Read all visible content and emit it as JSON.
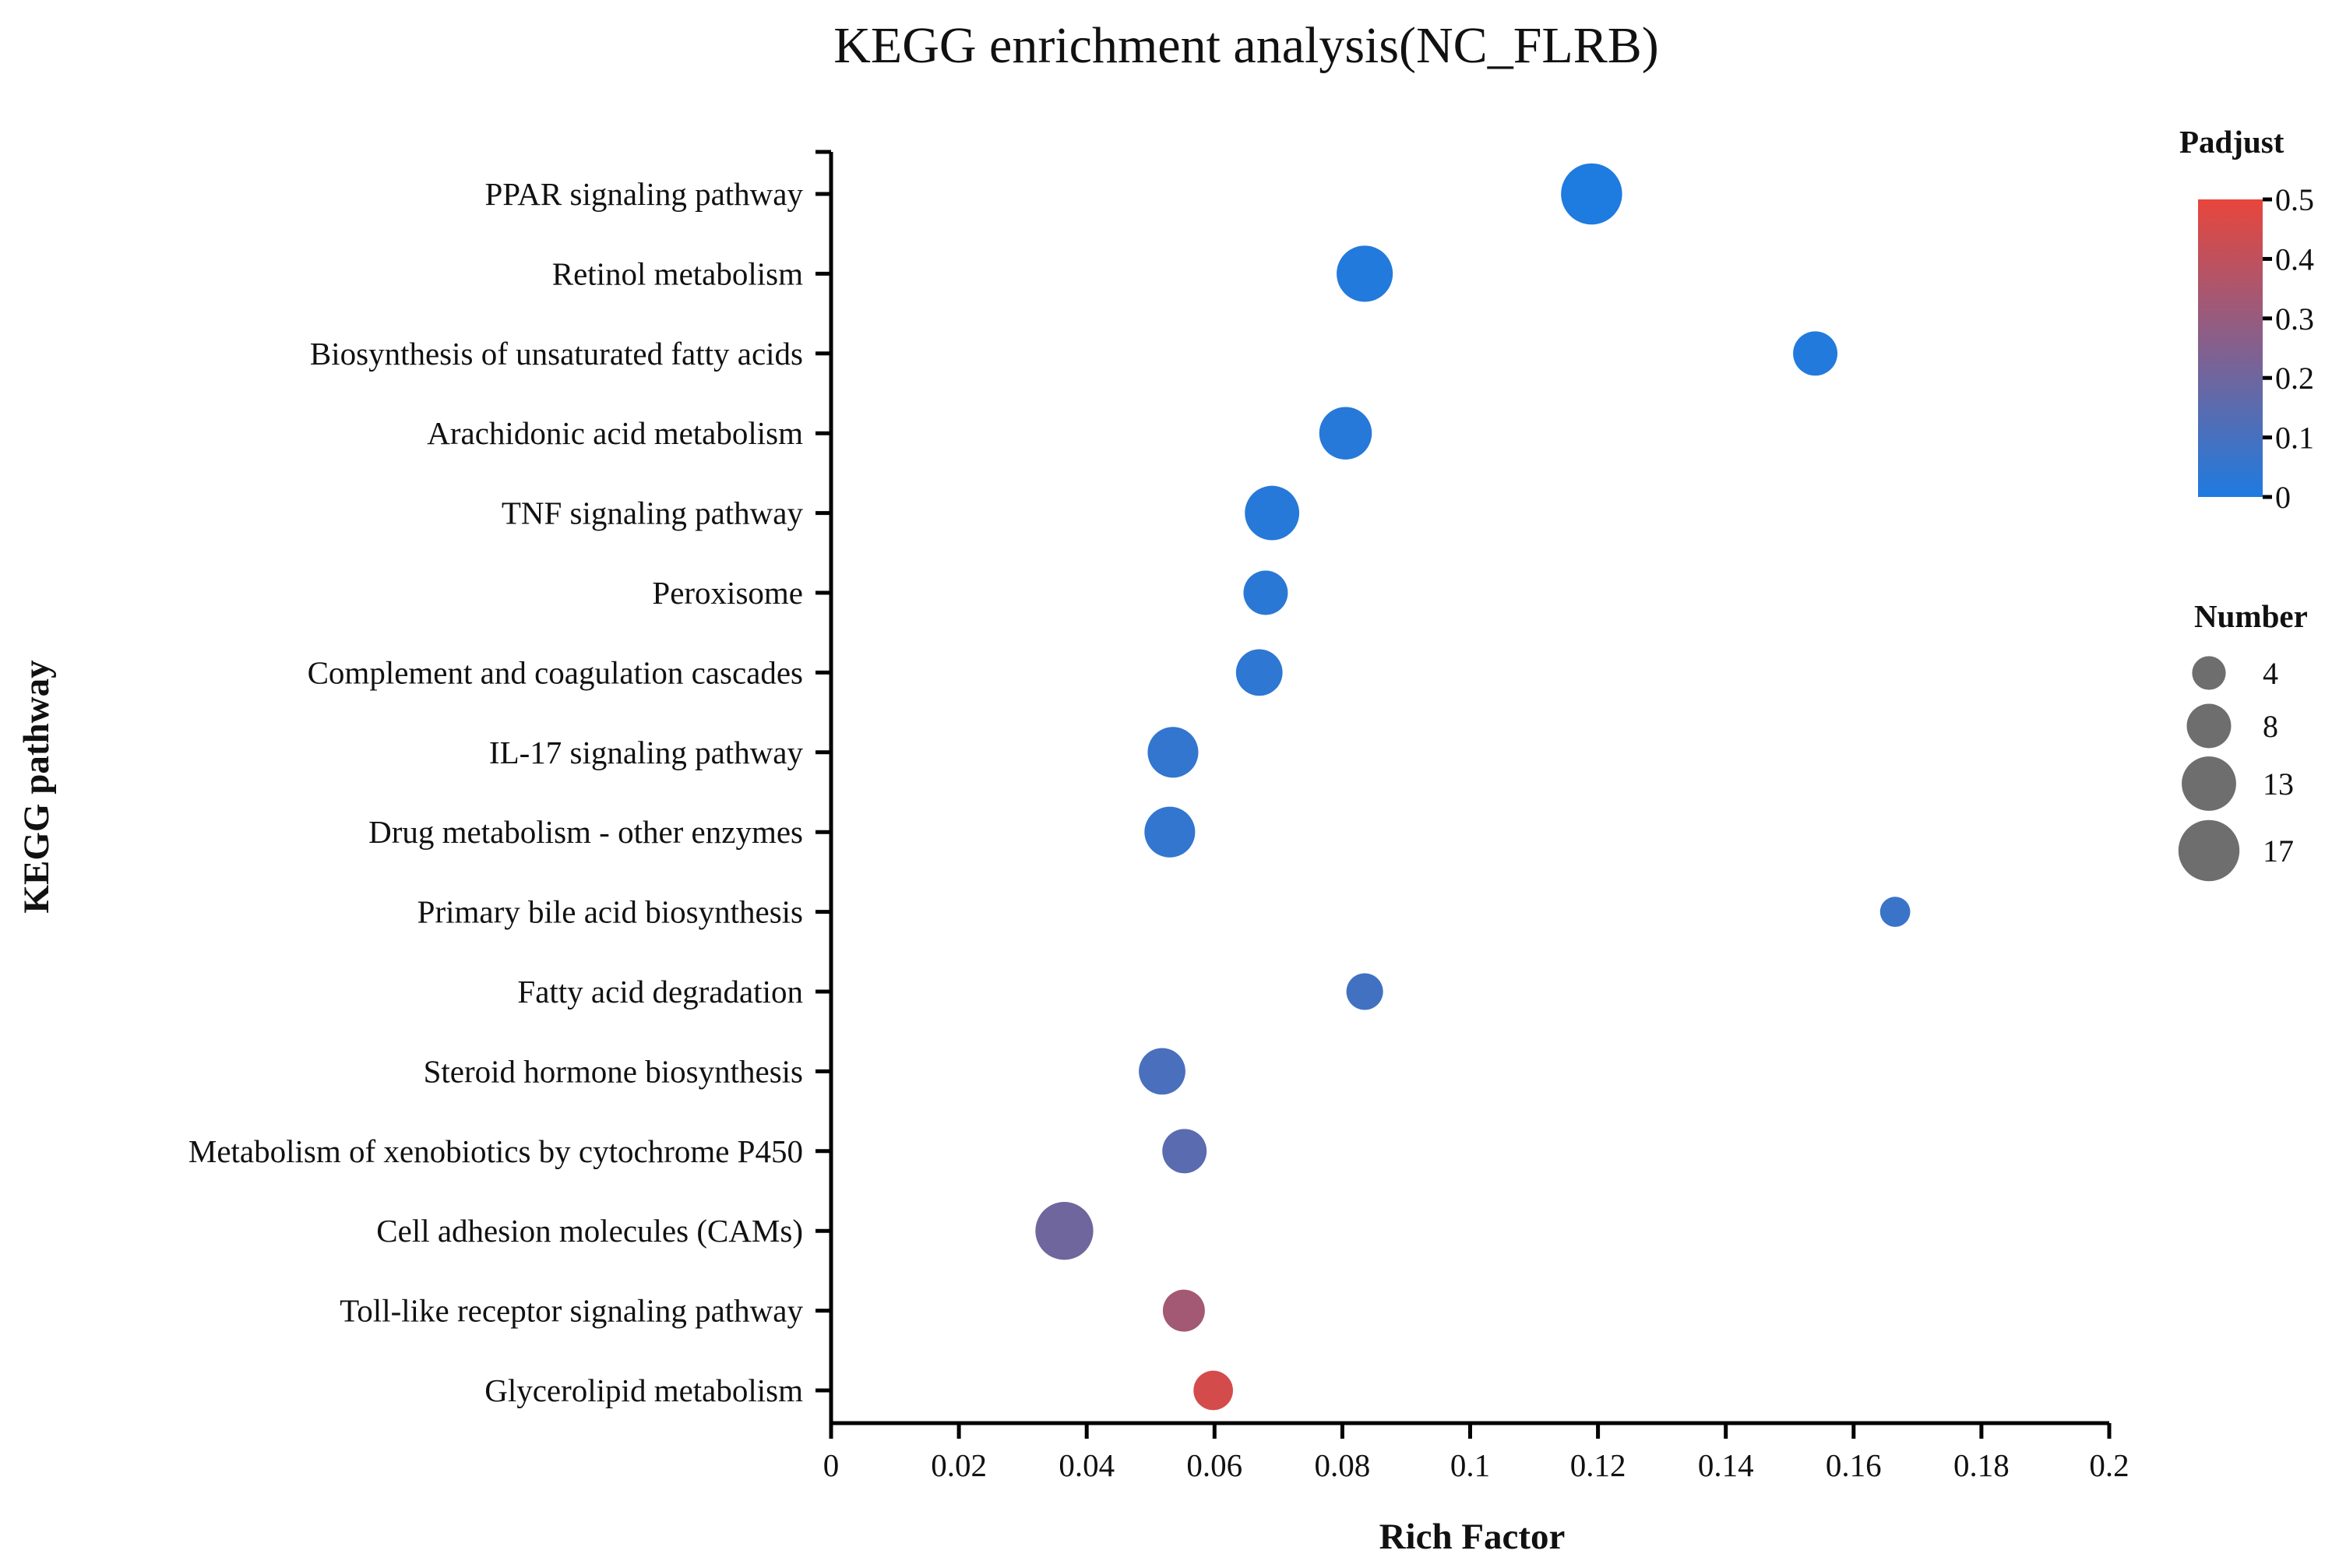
{
  "chart_data": {
    "type": "scatter",
    "title": "KEGG enrichment analysis(NC_FLRB)",
    "xlabel": "Rich Factor",
    "ylabel": "KEGG pathway",
    "xlim": [
      0,
      0.2
    ],
    "xticks": [
      "0",
      "0.02",
      "0.04",
      "0.06",
      "0.08",
      "0.1",
      "0.12",
      "0.14",
      "0.16",
      "0.18",
      "0.2"
    ],
    "xtick_values": [
      0,
      0.02,
      0.04,
      0.06,
      0.08,
      0.1,
      0.12,
      0.14,
      0.16,
      0.18,
      0.2
    ],
    "points": [
      {
        "pathway": "PPAR signaling pathway",
        "rich_factor": 0.119,
        "padjust": 0.0,
        "number": 17
      },
      {
        "pathway": "Retinol metabolism",
        "rich_factor": 0.0835,
        "padjust": 0.01,
        "number": 14
      },
      {
        "pathway": "Biosynthesis of unsaturated fatty acids",
        "rich_factor": 0.154,
        "padjust": 0.01,
        "number": 8
      },
      {
        "pathway": "Arachidonic acid metabolism",
        "rich_factor": 0.0805,
        "padjust": 0.02,
        "number": 12
      },
      {
        "pathway": "TNF signaling pathway",
        "rich_factor": 0.069,
        "padjust": 0.02,
        "number": 13
      },
      {
        "pathway": "Peroxisome",
        "rich_factor": 0.068,
        "padjust": 0.03,
        "number": 8
      },
      {
        "pathway": "Complement and coagulation cascades",
        "rich_factor": 0.067,
        "padjust": 0.04,
        "number": 9
      },
      {
        "pathway": "IL-17 signaling pathway",
        "rich_factor": 0.0535,
        "padjust": 0.05,
        "number": 11
      },
      {
        "pathway": "Drug metabolism - other enzymes",
        "rich_factor": 0.053,
        "padjust": 0.05,
        "number": 11
      },
      {
        "pathway": "Primary bile acid biosynthesis",
        "rich_factor": 0.1665,
        "padjust": 0.07,
        "number": 3
      },
      {
        "pathway": "Fatty acid degradation",
        "rich_factor": 0.0835,
        "padjust": 0.09,
        "number": 5
      },
      {
        "pathway": "Steroid hormone biosynthesis",
        "rich_factor": 0.0518,
        "padjust": 0.11,
        "number": 9
      },
      {
        "pathway": "Metabolism of xenobiotics by cytochrome P450",
        "rich_factor": 0.0553,
        "padjust": 0.15,
        "number": 8
      },
      {
        "pathway": "Cell adhesion molecules (CAMs)",
        "rich_factor": 0.0365,
        "padjust": 0.2,
        "number": 15
      },
      {
        "pathway": "Toll-like receptor signaling pathway",
        "rich_factor": 0.0552,
        "padjust": 0.33,
        "number": 7
      },
      {
        "pathway": "Glycerolipid metabolism",
        "rich_factor": 0.0598,
        "padjust": 0.45,
        "number": 6
      }
    ],
    "color_legend": {
      "title": "Padjust",
      "min": 0,
      "max": 0.5,
      "low_color": "#1e7be0",
      "high_color": "#e8463c",
      "ticks": [
        "0.5",
        "0.4",
        "0.3",
        "0.2",
        "0.1",
        "0"
      ],
      "tick_values": [
        0.5,
        0.4,
        0.3,
        0.2,
        0.1,
        0
      ]
    },
    "size_legend": {
      "title": "Number",
      "entries": [
        {
          "label": "4",
          "value": 4
        },
        {
          "label": "8",
          "value": 8
        },
        {
          "label": "13",
          "value": 13
        },
        {
          "label": "17",
          "value": 17
        }
      ],
      "color": "#6e6e6e"
    }
  }
}
